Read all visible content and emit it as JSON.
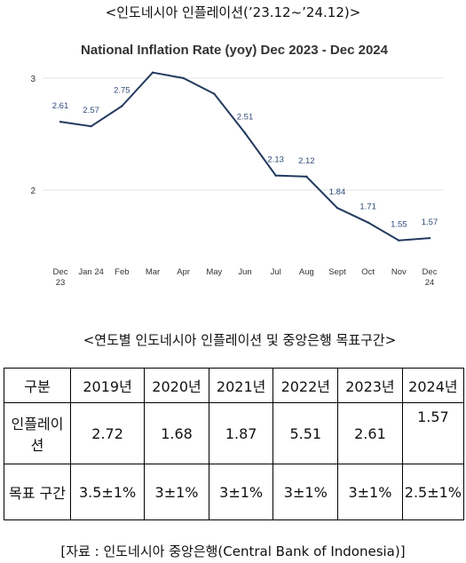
{
  "captions": {
    "chart_caption": "<인도네시아 인플레이션(’23.12~’24.12)>",
    "table_caption": "<연도별 인도네시아 인플레이션 및 중앙은행 목표구간>",
    "source": "[자료 : 인도네시아 중앙은행(Central Bank of Indonesia)]"
  },
  "chart_data": {
    "type": "line",
    "title": "National Inflation Rate (yoy) Dec 2023 - Dec 2024",
    "categories": [
      "Dec 23",
      "Jan 24",
      "Feb",
      "Mar",
      "Apr",
      "May",
      "Jun",
      "Jul",
      "Aug",
      "Sept",
      "Oct",
      "Nov",
      "Dec 24"
    ],
    "values": [
      2.61,
      2.57,
      2.75,
      3.05,
      3.0,
      2.86,
      2.51,
      2.13,
      2.12,
      1.84,
      1.71,
      1.55,
      1.57
    ],
    "data_labels": [
      "2.61",
      "2.57",
      "2.75",
      "",
      "",
      "",
      "2.51",
      "2.13",
      "2.12",
      "1.84",
      "1.71",
      "1.55",
      "1.57"
    ],
    "yticks": [
      2,
      3
    ],
    "ylim": [
      1.55,
      3.05
    ],
    "grid": "horizontal",
    "line_color": "#223a5e",
    "label_color": "#2f4a78"
  },
  "table": {
    "header": [
      "구분",
      "2019년",
      "2020년",
      "2021년",
      "2022년",
      "2023년",
      "2024년"
    ],
    "rows": [
      [
        "인플레이션",
        "2.72",
        "1.68",
        "1.87",
        "5.51",
        "2.61",
        "1.57"
      ],
      [
        "목표 구간",
        "3.5±1%",
        "3±1%",
        "3±1%",
        "3±1%",
        "3±1%",
        "2.5±1%"
      ]
    ]
  }
}
